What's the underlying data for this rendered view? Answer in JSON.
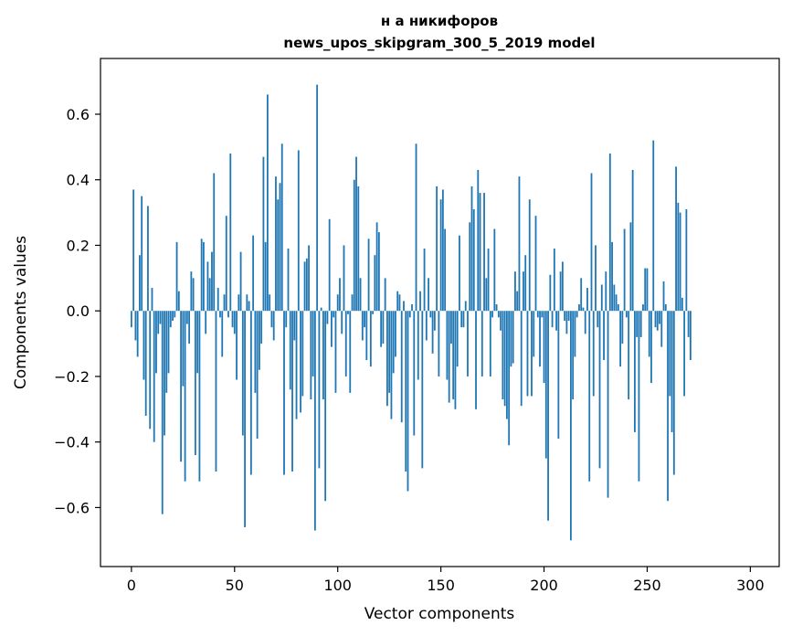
{
  "chart_data": {
    "type": "bar",
    "title": "н а никифоров",
    "subtitle": "news_upos_skipgram_300_5_2019 model",
    "xlabel": "Vector components",
    "ylabel": "Components values",
    "xlim": [
      -15,
      314
    ],
    "ylim": [
      -0.78,
      0.77
    ],
    "xticks": [
      0,
      50,
      100,
      150,
      200,
      250,
      300
    ],
    "yticks": [
      -0.6,
      -0.4,
      -0.2,
      0.0,
      0.2,
      0.4,
      0.6
    ],
    "ytick_labels": [
      "−0.6",
      "−0.4",
      "−0.2",
      "0.0",
      "0.2",
      "0.4",
      "0.6"
    ],
    "grid": false,
    "bar_color": "#1f77b4",
    "values": [
      -0.05,
      0.37,
      -0.09,
      -0.14,
      0.17,
      0.35,
      -0.21,
      -0.32,
      0.32,
      -0.36,
      0.07,
      -0.4,
      -0.19,
      -0.07,
      -0.04,
      -0.62,
      -0.38,
      -0.25,
      -0.19,
      -0.05,
      -0.03,
      -0.02,
      0.21,
      0.06,
      -0.46,
      -0.23,
      -0.52,
      -0.04,
      -0.1,
      0.12,
      0.1,
      -0.44,
      -0.19,
      -0.52,
      0.22,
      0.21,
      -0.07,
      0.15,
      0.1,
      0.18,
      0.42,
      -0.49,
      0.07,
      -0.02,
      -0.14,
      0.05,
      0.29,
      -0.02,
      0.48,
      -0.05,
      -0.07,
      -0.21,
      0.05,
      0.18,
      -0.38,
      -0.66,
      0.05,
      0.03,
      -0.5,
      0.23,
      -0.25,
      -0.39,
      -0.18,
      -0.1,
      0.47,
      0.21,
      0.66,
      0.05,
      -0.05,
      -0.09,
      0.41,
      0.34,
      0.39,
      0.51,
      -0.5,
      -0.05,
      0.19,
      -0.24,
      -0.49,
      -0.09,
      -0.33,
      0.49,
      -0.31,
      -0.26,
      0.15,
      0.16,
      0.2,
      -0.27,
      -0.2,
      -0.67,
      0.69,
      -0.48,
      0.01,
      -0.27,
      -0.58,
      -0.04,
      0.28,
      -0.11,
      -0.02,
      -0.25,
      0.05,
      0.1,
      -0.07,
      0.2,
      -0.2,
      -0.01,
      -0.25,
      0.05,
      0.4,
      0.47,
      0.38,
      0.1,
      -0.09,
      -0.05,
      -0.15,
      0.22,
      -0.17,
      -0.01,
      0.17,
      0.27,
      0.24,
      -0.11,
      -0.1,
      0.1,
      -0.29,
      -0.25,
      -0.33,
      -0.19,
      -0.14,
      0.06,
      0.05,
      -0.34,
      0.03,
      -0.49,
      -0.55,
      -0.02,
      0.02,
      -0.38,
      0.51,
      -0.21,
      0.06,
      -0.48,
      0.19,
      -0.09,
      0.1,
      -0.02,
      -0.13,
      -0.06,
      0.38,
      -0.2,
      0.34,
      0.37,
      0.25,
      -0.21,
      -0.28,
      -0.1,
      -0.27,
      -0.3,
      -0.17,
      0.23,
      -0.05,
      -0.05,
      0.03,
      -0.2,
      0.27,
      0.38,
      0.31,
      -0.3,
      0.43,
      0.36,
      -0.2,
      0.36,
      0.1,
      0.19,
      -0.2,
      -0.02,
      0.25,
      0.02,
      -0.02,
      -0.06,
      -0.27,
      -0.29,
      -0.33,
      -0.41,
      -0.17,
      -0.16,
      0.12,
      0.06,
      0.41,
      -0.29,
      0.12,
      0.17,
      -0.26,
      0.34,
      -0.26,
      -0.14,
      0.29,
      -0.02,
      -0.17,
      -0.02,
      -0.22,
      -0.45,
      -0.64,
      0.11,
      -0.05,
      0.19,
      -0.06,
      -0.39,
      0.12,
      0.15,
      -0.03,
      -0.07,
      -0.03,
      -0.7,
      -0.27,
      -0.14,
      -0.02,
      0.02,
      0.1,
      0.01,
      -0.07,
      0.07,
      -0.52,
      0.42,
      -0.26,
      0.2,
      -0.05,
      -0.48,
      0.08,
      -0.15,
      0.12,
      -0.57,
      0.48,
      0.21,
      0.08,
      0.05,
      0.02,
      -0.17,
      -0.1,
      0.25,
      -0.02,
      -0.27,
      0.27,
      0.43,
      -0.37,
      -0.08,
      -0.52,
      -0.08,
      0.02,
      0.13,
      0.13,
      -0.14,
      -0.22,
      0.52,
      -0.05,
      -0.06,
      -0.04,
      -0.11,
      0.09,
      0.02,
      -0.58,
      -0.26,
      -0.37,
      -0.5,
      0.44,
      0.33,
      0.3,
      0.04,
      -0.26,
      0.31,
      -0.08,
      -0.15
    ]
  }
}
